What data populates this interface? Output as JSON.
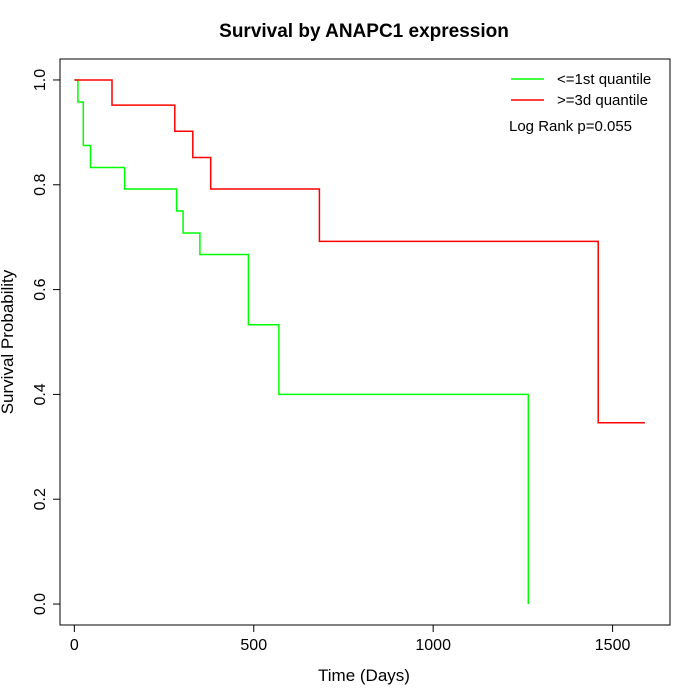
{
  "chart_data": {
    "type": "line",
    "title": "Survival by ANAPC1 expression",
    "xlabel": "Time (Days)",
    "ylabel": "Survival Probability",
    "xlim": [
      -40,
      1660
    ],
    "ylim": [
      -0.04,
      1.04
    ],
    "x_ticks": [
      0,
      500,
      1000,
      1500
    ],
    "x_tick_labels": [
      "0",
      "500",
      "1000",
      "1500"
    ],
    "y_ticks": [
      0.0,
      0.2,
      0.4,
      0.6,
      0.8,
      1.0
    ],
    "y_tick_labels": [
      "0.0",
      "0.2",
      "0.4",
      "0.6",
      "0.8",
      "1.0"
    ],
    "grid": false,
    "legend_position": "top-right",
    "annotation": "Log Rank p=0.055",
    "series": [
      {
        "name": "<=1st quantile",
        "color": "#00ff00",
        "step": true,
        "points": [
          [
            0,
            1.0
          ],
          [
            10,
            1.0
          ],
          [
            10,
            0.958
          ],
          [
            25,
            0.958
          ],
          [
            25,
            0.875
          ],
          [
            45,
            0.875
          ],
          [
            45,
            0.833
          ],
          [
            140,
            0.833
          ],
          [
            140,
            0.792
          ],
          [
            285,
            0.792
          ],
          [
            285,
            0.75
          ],
          [
            303,
            0.75
          ],
          [
            303,
            0.708
          ],
          [
            350,
            0.708
          ],
          [
            350,
            0.667
          ],
          [
            485,
            0.667
          ],
          [
            485,
            0.533
          ],
          [
            570,
            0.533
          ],
          [
            570,
            0.4
          ],
          [
            1265,
            0.4
          ],
          [
            1265,
            0.0
          ]
        ]
      },
      {
        "name": ">=3d quantile",
        "color": "#ff0000",
        "step": true,
        "points": [
          [
            0,
            1.0
          ],
          [
            105,
            1.0
          ],
          [
            105,
            0.952
          ],
          [
            280,
            0.952
          ],
          [
            280,
            0.902
          ],
          [
            330,
            0.902
          ],
          [
            330,
            0.852
          ],
          [
            380,
            0.852
          ],
          [
            380,
            0.792
          ],
          [
            683,
            0.792
          ],
          [
            683,
            0.692
          ],
          [
            1460,
            0.692
          ],
          [
            1460,
            0.346
          ],
          [
            1590,
            0.346
          ]
        ]
      }
    ]
  }
}
